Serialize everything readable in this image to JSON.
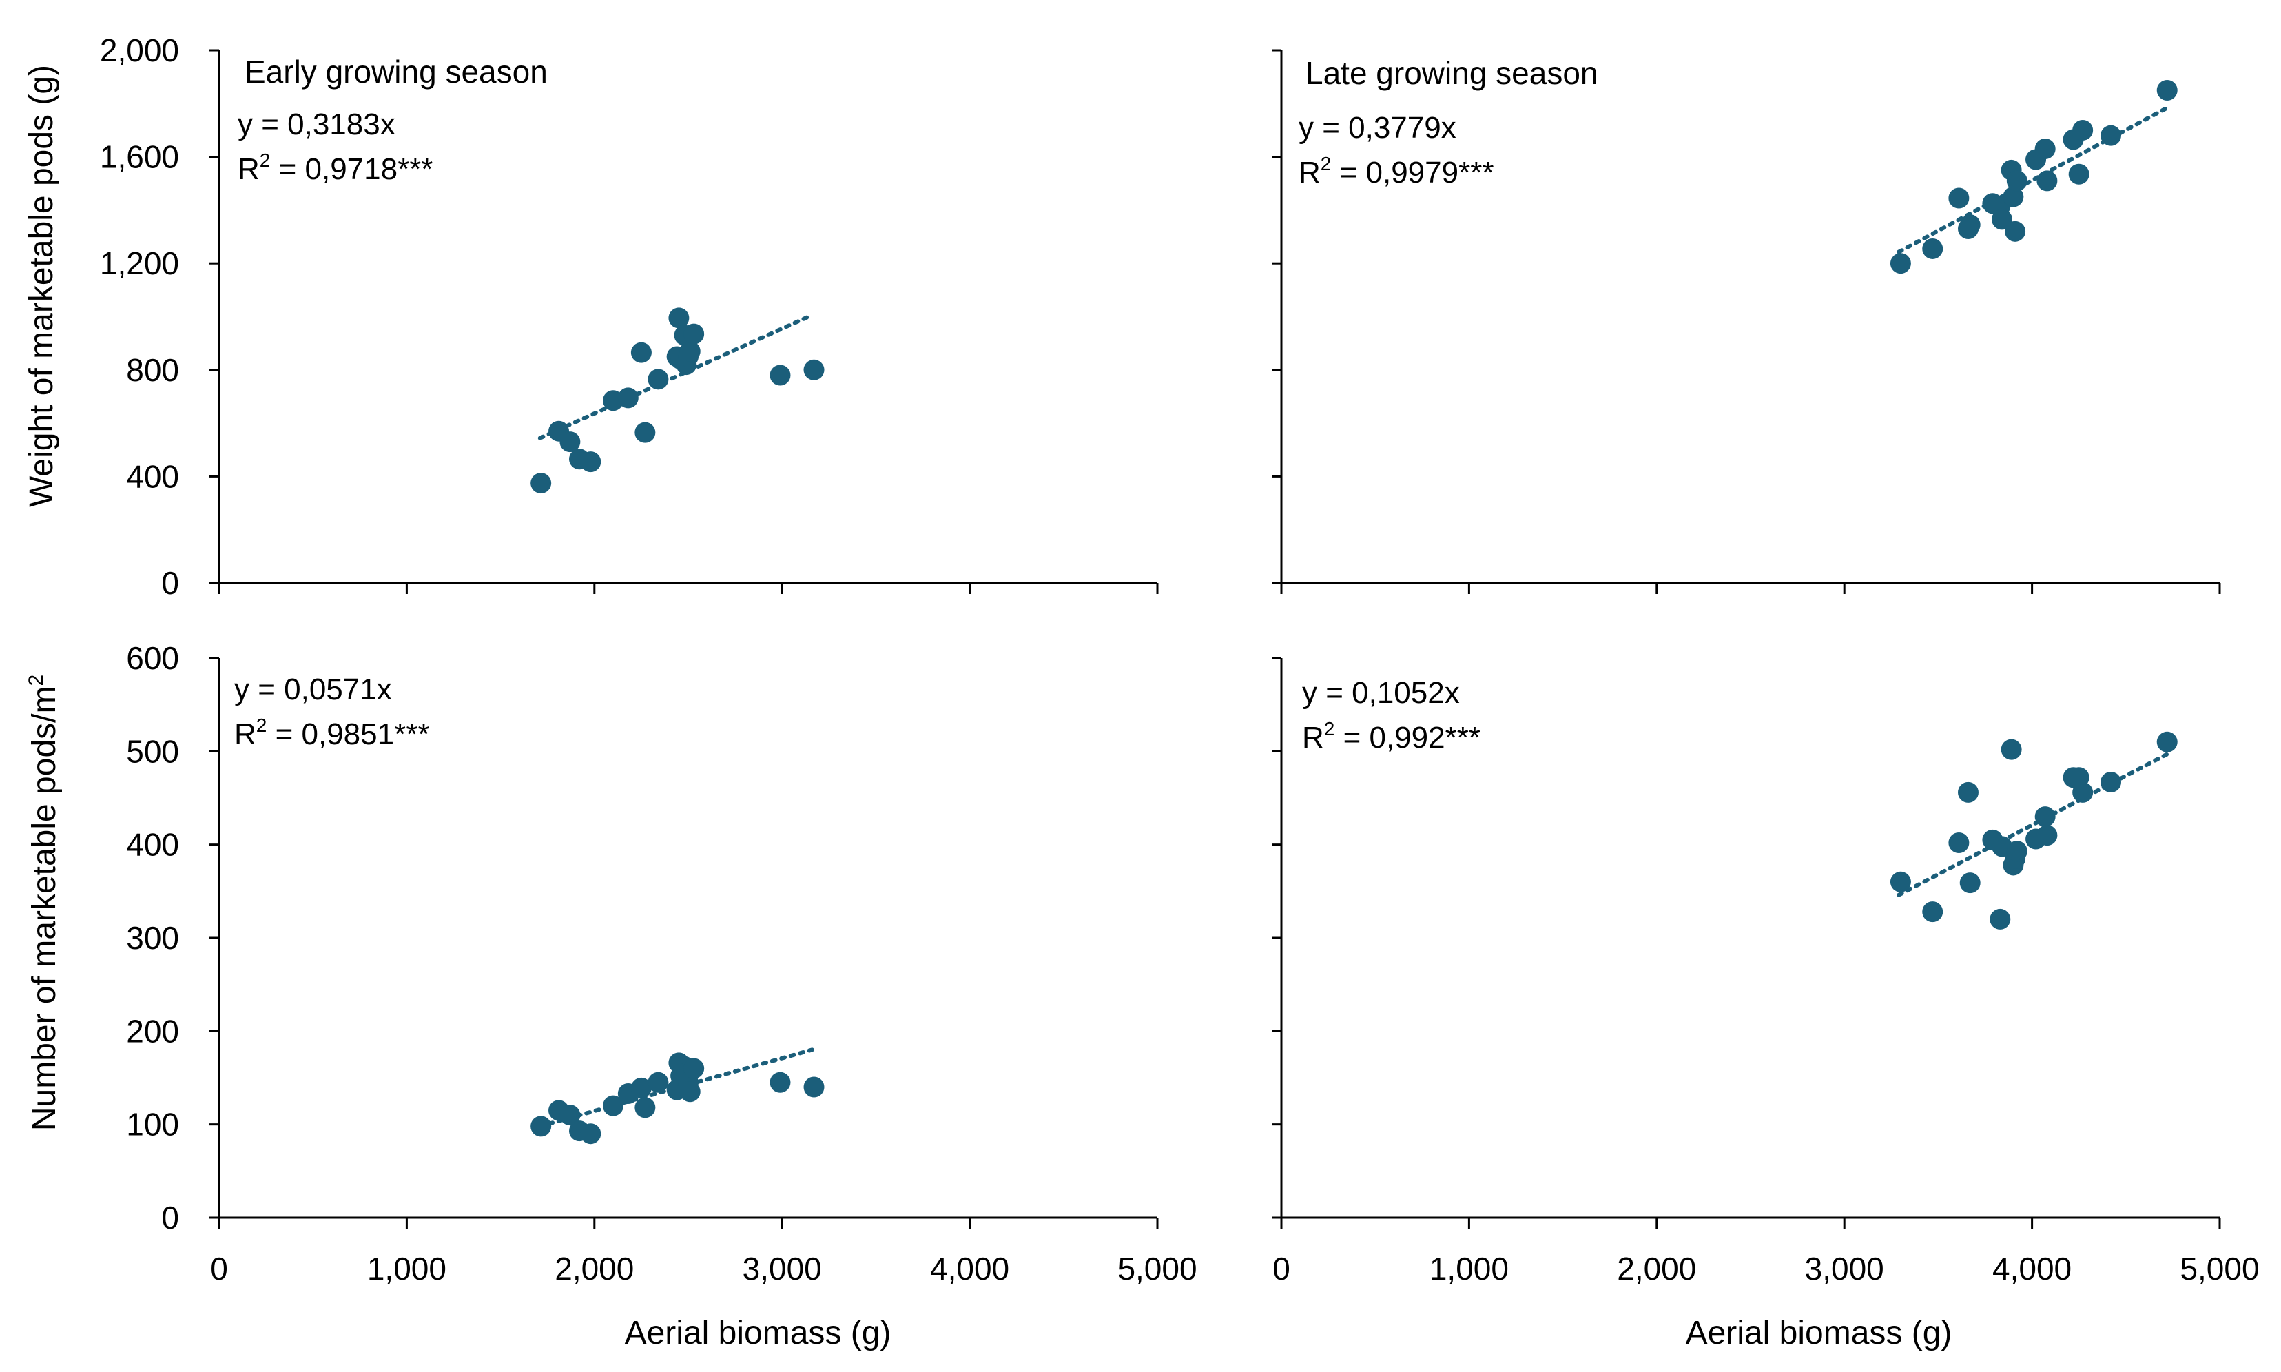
{
  "figure": {
    "x_axis_title": "Aerial biomass (g)",
    "y_axis_title_top": "Weight of marketable pods (g)",
    "y_axis_title_bottom_base": "Number of marketable pods/m",
    "y_axis_title_bottom_sup": "2",
    "season_early": "Early growing season",
    "season_late": "Late growing season",
    "colors": {
      "points": "#1b5e7a",
      "axis": "#000000"
    }
  },
  "chart_data": [
    {
      "id": "early_weight",
      "type": "scatter",
      "title": "Early growing season",
      "xlabel": "Aerial biomass (g)",
      "ylabel": "Weight of marketable pods (g)",
      "xlim": [
        0,
        5000
      ],
      "ylim": [
        0,
        2000
      ],
      "xticks": [
        "0",
        "1,000",
        "2,000",
        "3,000",
        "4,000",
        "5,000"
      ],
      "yticks": [
        "0",
        "400",
        "800",
        "1,200",
        "1,600",
        "2,000"
      ],
      "equation": "y = 0,3183x",
      "r2_prefix": "R",
      "r2_sup": "2",
      "r2_value": " = 0,9718***",
      "trend_x": [
        1710,
        3160
      ],
      "trend_y": [
        544,
        1006
      ],
      "x": [
        1715,
        1810,
        1870,
        1920,
        1980,
        2100,
        2180,
        2250,
        2270,
        2340,
        2440,
        2450,
        2460,
        2480,
        2490,
        2500,
        2510,
        2530,
        2990,
        3170
      ],
      "y": [
        375,
        570,
        530,
        465,
        455,
        685,
        695,
        865,
        565,
        765,
        850,
        995,
        840,
        930,
        820,
        850,
        870,
        935,
        780,
        800
      ]
    },
    {
      "id": "late_weight",
      "type": "scatter",
      "title": "Late growing season",
      "xlabel": "Aerial biomass (g)",
      "ylabel": "Weight of marketable pods (g)",
      "xlim": [
        0,
        5000
      ],
      "ylim": [
        0,
        2000
      ],
      "xticks": [
        "0",
        "1,000",
        "2,000",
        "3,000",
        "4,000",
        "5,000"
      ],
      "yticks": [
        "0",
        "400",
        "800",
        "1,200",
        "1,600",
        "2,000"
      ],
      "equation": "y = 0,3779x",
      "r2_prefix": "R",
      "r2_sup": "2",
      "r2_value": " = 0,9979***",
      "trend_x": [
        3290,
        4720
      ],
      "trend_y": [
        1243,
        1784
      ],
      "x": [
        3300,
        3470,
        3610,
        3660,
        3670,
        3790,
        3830,
        3840,
        3890,
        3900,
        3910,
        3920,
        4020,
        4070,
        4080,
        4220,
        4250,
        4270,
        4420,
        4720
      ],
      "y": [
        1200,
        1255,
        1445,
        1330,
        1345,
        1425,
        1415,
        1365,
        1550,
        1450,
        1320,
        1510,
        1590,
        1630,
        1510,
        1665,
        1535,
        1700,
        1680,
        1850
      ]
    },
    {
      "id": "early_number",
      "type": "scatter",
      "title": "Early growing season",
      "xlabel": "Aerial biomass (g)",
      "ylabel": "Number of marketable pods/m2",
      "xlim": [
        0,
        5000
      ],
      "ylim": [
        0,
        600
      ],
      "xticks": [
        "0",
        "1,000",
        "2,000",
        "3,000",
        "4,000",
        "5,000"
      ],
      "yticks": [
        "0",
        "100",
        "200",
        "300",
        "400",
        "500",
        "600"
      ],
      "equation": "y = 0,0571x",
      "r2_prefix": "R",
      "r2_sup": "2",
      "r2_value": " = 0,9851***",
      "trend_x": [
        1710,
        3160
      ],
      "trend_y": [
        98,
        180
      ],
      "x": [
        1715,
        1810,
        1870,
        1920,
        1980,
        2100,
        2180,
        2250,
        2270,
        2340,
        2440,
        2450,
        2460,
        2480,
        2490,
        2500,
        2510,
        2530,
        2990,
        3170
      ],
      "y": [
        98,
        115,
        110,
        93,
        90,
        120,
        133,
        139,
        118,
        145,
        137,
        166,
        152,
        162,
        155,
        145,
        135,
        160,
        145,
        140
      ]
    },
    {
      "id": "late_number",
      "type": "scatter",
      "title": "Late growing season",
      "xlabel": "Aerial biomass (g)",
      "ylabel": "Number of marketable pods/m2",
      "xlim": [
        0,
        5000
      ],
      "ylim": [
        0,
        600
      ],
      "xticks": [
        "0",
        "1,000",
        "2,000",
        "3,000",
        "4,000",
        "5,000"
      ],
      "yticks": [
        "0",
        "100",
        "200",
        "300",
        "400",
        "500",
        "600"
      ],
      "equation": "y = 0,1052x",
      "r2_prefix": "R",
      "r2_sup": "2",
      "r2_value": " = 0,992***",
      "trend_x": [
        3290,
        4720
      ],
      "trend_y": [
        346,
        497
      ],
      "x": [
        3300,
        3470,
        3610,
        3660,
        3670,
        3790,
        3830,
        3840,
        3890,
        3900,
        3910,
        3920,
        4020,
        4070,
        4080,
        4220,
        4250,
        4270,
        4420,
        4720
      ],
      "y": [
        360,
        328,
        402,
        456,
        359,
        405,
        320,
        398,
        502,
        378,
        385,
        393,
        406,
        430,
        410,
        472,
        472,
        456,
        467,
        510
      ]
    }
  ]
}
